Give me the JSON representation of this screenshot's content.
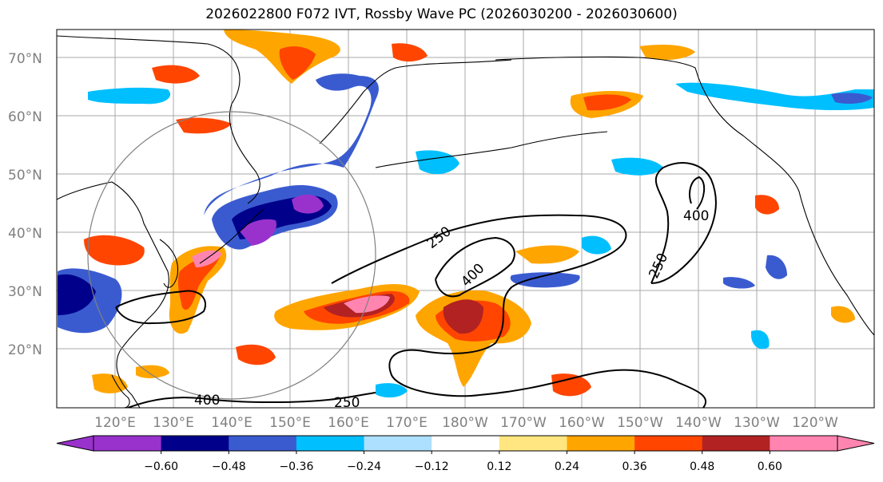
{
  "title": "2026022800 F072 IVT, Rossby Wave PC (2026030200 - 2026030600)",
  "lat_labels": [
    "70°N",
    "60°N",
    "50°N",
    "40°N",
    "30°N",
    "20°N"
  ],
  "lon_labels": [
    "120°E",
    "130°E",
    "140°E",
    "150°E",
    "160°E",
    "170°E",
    "180°W",
    "170°W",
    "160°W",
    "150°W",
    "140°W",
    "130°W",
    "120°W"
  ],
  "contour_labels": [
    "250",
    "400",
    "250",
    "400",
    "400",
    "250"
  ],
  "colorbar": {
    "colors": [
      "#9932CC",
      "#00008B",
      "#3A5BD0",
      "#00BFFF",
      "#ADDFFF",
      "#FFFFFF",
      "#FFE680",
      "#FFA500",
      "#FF4500",
      "#B22222",
      "#FF85B0"
    ],
    "tick_labels": [
      "−0.60",
      "−0.48",
      "−0.36",
      "−0.24",
      "−0.12",
      "0.12",
      "0.24",
      "0.36",
      "0.48",
      "0.60"
    ]
  }
}
